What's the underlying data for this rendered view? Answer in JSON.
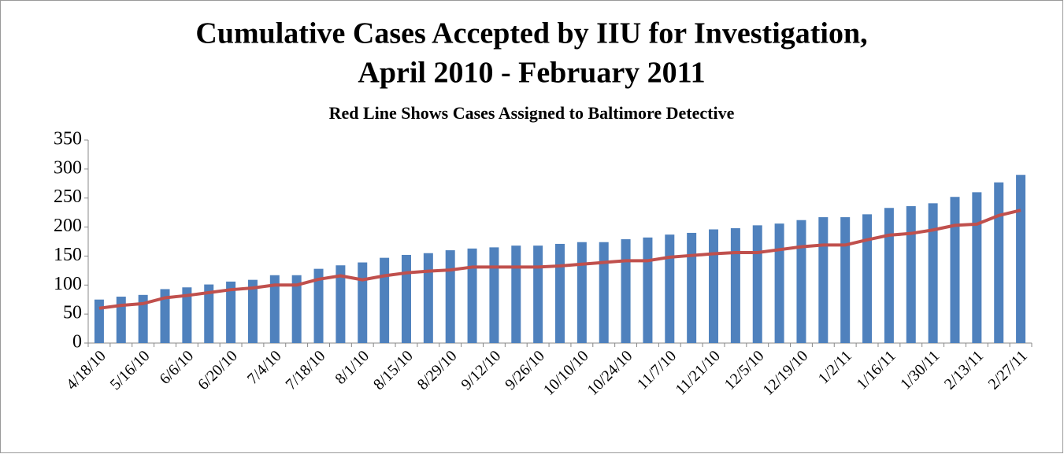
{
  "chart_data": {
    "type": "bar",
    "title": [
      "Cumulative Cases Accepted  by IIU for Investigation,",
      "April 2010 - February 2011"
    ],
    "subtitle": "Red Line Shows Cases Assigned to Baltimore Detective",
    "categories": [
      "4/18/10",
      null,
      "5/16/10",
      null,
      "6/6/10",
      null,
      "6/20/10",
      null,
      "7/4/10",
      null,
      "7/18/10",
      null,
      "8/1/10",
      null,
      "8/15/10",
      null,
      "8/29/10",
      null,
      "9/12/10",
      null,
      "9/26/10",
      null,
      "10/10/10",
      null,
      "10/24/10",
      null,
      "11/7/10",
      null,
      "11/21/10",
      null,
      "12/5/10",
      null,
      "12/19/10",
      null,
      "1/2/11",
      null,
      "1/16/11",
      null,
      "1/30/11",
      null,
      "2/13/11",
      null,
      "2/27/11"
    ],
    "series": [
      {
        "type": "bar",
        "color": "#4f81bd",
        "values": [
          75,
          80,
          83,
          93,
          96,
          101,
          106,
          109,
          117,
          117,
          128,
          134,
          139,
          147,
          152,
          155,
          160,
          163,
          165,
          168,
          168,
          171,
          174,
          174,
          179,
          182,
          187,
          190,
          196,
          198,
          203,
          206,
          212,
          217,
          217,
          222,
          233,
          236,
          241,
          252,
          260,
          277,
          290
        ]
      },
      {
        "type": "line",
        "color": "#c0504d",
        "values": [
          60,
          65,
          68,
          78,
          82,
          87,
          92,
          95,
          100,
          100,
          110,
          116,
          109,
          116,
          121,
          124,
          126,
          131,
          131,
          131,
          131,
          133,
          136,
          139,
          142,
          142,
          148,
          151,
          154,
          156,
          156,
          161,
          166,
          169,
          169,
          178,
          186,
          189,
          195,
          203,
          205,
          220,
          229
        ]
      }
    ],
    "ylim": [
      0,
      350
    ],
    "yticks": [
      0,
      50,
      100,
      150,
      200,
      250,
      300,
      350
    ],
    "grid": false
  }
}
